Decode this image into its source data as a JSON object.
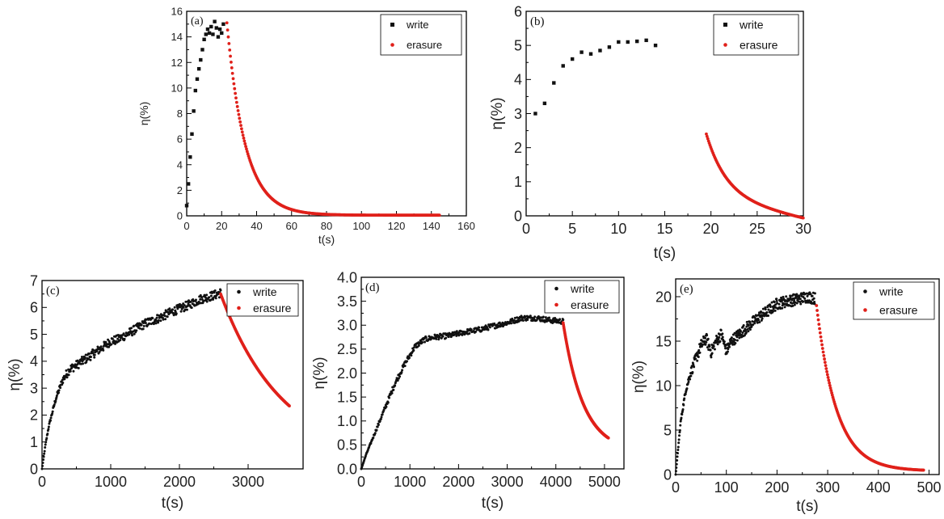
{
  "colors": {
    "write": "#111111",
    "erasure": "#e0201a",
    "axis": "#000000"
  },
  "chart_data": [
    {
      "id": "a",
      "panel_label": "(a)",
      "type": "scatter",
      "xlabel": "t(s)",
      "ylabel": "η(%)",
      "xlim": [
        0,
        160
      ],
      "ylim": [
        0,
        16
      ],
      "xticks": [
        0,
        20,
        40,
        60,
        80,
        100,
        120,
        140,
        160
      ],
      "yticks": [
        0,
        2,
        4,
        6,
        8,
        10,
        12,
        14,
        16
      ],
      "grid": false,
      "legend_position": "top-right",
      "series": [
        {
          "name": "write",
          "marker": "square",
          "x": [
            0,
            1,
            2,
            3,
            4,
            5,
            6,
            7,
            8,
            9,
            10,
            11,
            12,
            13,
            14,
            15,
            16,
            17,
            18,
            19,
            20,
            21
          ],
          "y": [
            0.8,
            2.5,
            4.6,
            6.4,
            8.2,
            9.8,
            10.7,
            11.5,
            12.2,
            13.0,
            13.8,
            14.2,
            14.6,
            14.3,
            14.8,
            14.2,
            15.2,
            14.7,
            14.0,
            14.6,
            14.3,
            15.0
          ]
        },
        {
          "name": "erasure",
          "marker": "dot",
          "model": {
            "t0": 23,
            "t1": 145,
            "y0": 15.1,
            "tau": 10.5,
            "offset": 0.05,
            "step": 0.4
          }
        }
      ]
    },
    {
      "id": "b",
      "panel_label": "(b)",
      "type": "scatter",
      "xlabel": "t(s)",
      "ylabel": "η(%)",
      "xlim": [
        0,
        30
      ],
      "ylim": [
        0,
        6
      ],
      "xticks": [
        0,
        5,
        10,
        15,
        20,
        25,
        30
      ],
      "yticks": [
        0,
        1,
        2,
        3,
        4,
        5,
        6
      ],
      "grid": false,
      "legend_position": "top-right",
      "series": [
        {
          "name": "write",
          "marker": "square",
          "x": [
            1,
            2,
            3,
            4,
            5,
            6,
            7,
            8,
            9,
            10,
            11,
            12,
            13,
            14
          ],
          "y": [
            3.0,
            3.3,
            3.9,
            4.4,
            4.6,
            4.8,
            4.75,
            4.85,
            4.95,
            5.1,
            5.1,
            5.12,
            5.15,
            5.0
          ]
        },
        {
          "name": "erasure",
          "marker": "dot",
          "model": {
            "t0": 19.5,
            "t1": 30,
            "y0": 2.4,
            "tau": 2.2,
            "offset": 0.55,
            "linear": -0.06,
            "step": 0.08
          }
        }
      ]
    },
    {
      "id": "c",
      "panel_label": "(c)",
      "type": "scatter",
      "xlabel": "t(s)",
      "ylabel": "η(%)",
      "xlim": [
        0,
        3800
      ],
      "ylim": [
        0,
        7
      ],
      "xticks": [
        0,
        1000,
        2000,
        3000
      ],
      "yticks": [
        0,
        1,
        2,
        3,
        4,
        5,
        6,
        7
      ],
      "grid": false,
      "legend_position": "top-right",
      "series": [
        {
          "name": "write",
          "marker": "dot",
          "noise": 0.12,
          "x": [
            0,
            50,
            100,
            200,
            300,
            400,
            500,
            700,
            900,
            1000,
            1100,
            1300,
            1500,
            1700,
            1900,
            2100,
            2300,
            2500,
            2600
          ],
          "y": [
            0,
            0.9,
            1.6,
            2.6,
            3.3,
            3.7,
            3.85,
            4.2,
            4.55,
            4.75,
            4.8,
            5.1,
            5.4,
            5.6,
            5.85,
            6.05,
            6.3,
            6.45,
            6.55
          ]
        },
        {
          "name": "erasure",
          "marker": "dot",
          "model": {
            "t0": 2600,
            "t1": 3600,
            "y0": 6.5,
            "tau": 900,
            "offset": 0.3,
            "step": 8
          }
        }
      ]
    },
    {
      "id": "d",
      "panel_label": "(d)",
      "type": "scatter",
      "xlabel": "t(s)",
      "ylabel": "η(%)",
      "xlim": [
        0,
        5400
      ],
      "ylim": [
        0,
        4.0
      ],
      "xticks": [
        0,
        1000,
        2000,
        3000,
        4000,
        5000
      ],
      "yticks": [
        0.0,
        0.5,
        1.0,
        1.5,
        2.0,
        2.5,
        3.0,
        3.5,
        4.0
      ],
      "grid": false,
      "legend_position": "top-right",
      "series": [
        {
          "name": "write",
          "marker": "dot",
          "noise": 0.07,
          "x": [
            0,
            100,
            300,
            500,
            700,
            900,
            1100,
            1300,
            1500,
            1800,
            2100,
            2400,
            2700,
            3000,
            3300,
            3600,
            3900,
            4150
          ],
          "y": [
            0,
            0.3,
            0.8,
            1.3,
            1.8,
            2.2,
            2.55,
            2.7,
            2.75,
            2.78,
            2.85,
            2.9,
            2.98,
            3.05,
            3.15,
            3.15,
            3.1,
            3.08
          ]
        },
        {
          "name": "erasure",
          "marker": "dot",
          "model": {
            "t0": 4150,
            "t1": 5080,
            "y0": 3.05,
            "tau": 420,
            "offset": 0.35,
            "step": 6
          }
        }
      ]
    },
    {
      "id": "e",
      "panel_label": "(e)",
      "type": "scatter",
      "xlabel": "t(s)",
      "ylabel": "η(%)",
      "xlim": [
        0,
        520
      ],
      "ylim": [
        0,
        22
      ],
      "xticks": [
        0,
        100,
        200,
        300,
        400,
        500
      ],
      "yticks": [
        0,
        5,
        10,
        15,
        20
      ],
      "grid": false,
      "legend_position": "top-right",
      "series": [
        {
          "name": "write",
          "marker": "dot",
          "noise": 0.15,
          "x": [
            0,
            5,
            10,
            20,
            30,
            40,
            50,
            60,
            70,
            80,
            90,
            100,
            110,
            120,
            140,
            160,
            180,
            200,
            220,
            240,
            260,
            275
          ],
          "y": [
            0,
            3.0,
            6.0,
            9.5,
            11.5,
            13.0,
            14.5,
            15.3,
            13.8,
            15.0,
            15.8,
            13.9,
            15.0,
            15.5,
            16.5,
            17.5,
            18.3,
            19.2,
            19.5,
            19.7,
            20.0,
            19.8
          ]
        },
        {
          "name": "erasure",
          "marker": "dot",
          "model": {
            "t0": 278,
            "t1": 490,
            "y0": 19.0,
            "tau": 40,
            "offset": 0.4,
            "step": 1.2
          }
        }
      ]
    }
  ]
}
